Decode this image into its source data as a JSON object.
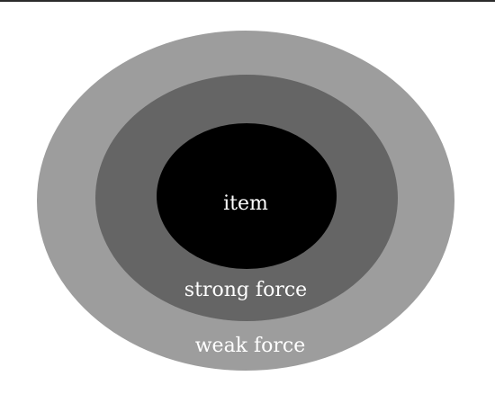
{
  "diagram": {
    "rings": [
      {
        "id": "outer",
        "label": "weak force",
        "color": "#9d9d9d"
      },
      {
        "id": "middle",
        "label": "strong force",
        "color": "#656565"
      },
      {
        "id": "inner",
        "label": "item",
        "color": "#000000"
      }
    ],
    "label_color": "#ffffff",
    "background": "#ffffff"
  }
}
